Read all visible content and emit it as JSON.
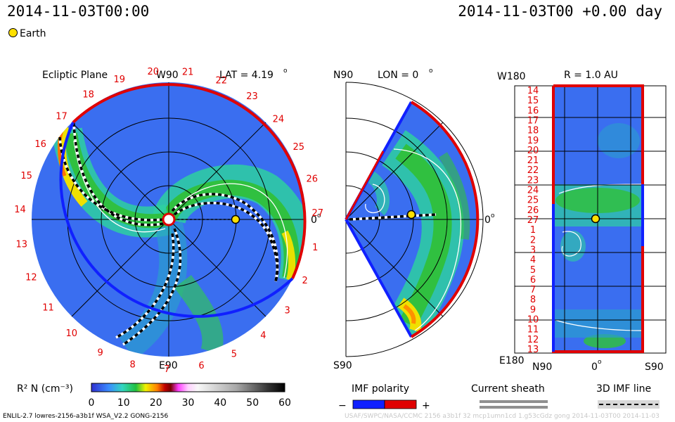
{
  "header": {
    "time_left": "2014-11-03T00:00",
    "time_right": "2014-11-03T00 +0.00 day"
  },
  "legend": {
    "earth_label": "Earth"
  },
  "ecliptic": {
    "title": "Ecliptic Plane",
    "top_label": "W90",
    "lat_label": "LAT = 4.19",
    "bottom_label": "E90",
    "right_label": "0",
    "longitudes": [
      "20",
      "21",
      "22",
      "23",
      "24",
      "25",
      "26",
      "27",
      "1",
      "2",
      "3",
      "4",
      "5",
      "6",
      "7",
      "8",
      "9",
      "10",
      "11",
      "12",
      "13",
      "14",
      "15",
      "16",
      "17",
      "18",
      "19"
    ]
  },
  "meridional": {
    "top_label": "N90",
    "lon_label": "LON = 0",
    "bottom_label": "S90",
    "right_label": "0"
  },
  "sphere": {
    "top_left_label": "W180",
    "title": "R = 1.0 AU",
    "bottom_left_label": "E180",
    "bottom_labels": [
      "N90",
      "0",
      "S90"
    ],
    "row_labels": [
      "14",
      "15",
      "16",
      "17",
      "18",
      "19",
      "20",
      "21",
      "22",
      "23",
      "24",
      "25",
      "26",
      "27",
      "1",
      "2",
      "3",
      "4",
      "5",
      "6",
      "7",
      "8",
      "9",
      "10",
      "11",
      "12",
      "13"
    ]
  },
  "colorbar": {
    "label": "R² N (cm⁻³)",
    "ticks": [
      "0",
      "10",
      "20",
      "30",
      "40",
      "50",
      "60"
    ]
  },
  "imf_polarity": {
    "label": "IMF polarity",
    "minus": "−",
    "plus": "+"
  },
  "current_sheath": {
    "label": "Current sheath"
  },
  "imf_line": {
    "label": "3D IMF line"
  },
  "footer": {
    "model": "ENLIL-2.7 lowres-2156-a3b1f WSA_V2.2 GONG-2156",
    "faint": "USAF/SWPC/NASA/CCMC 2156 a3b1f 32 mcp1umn1cd 1.g53cGdz gong 2014-11-03T00   2014-11-03"
  }
}
